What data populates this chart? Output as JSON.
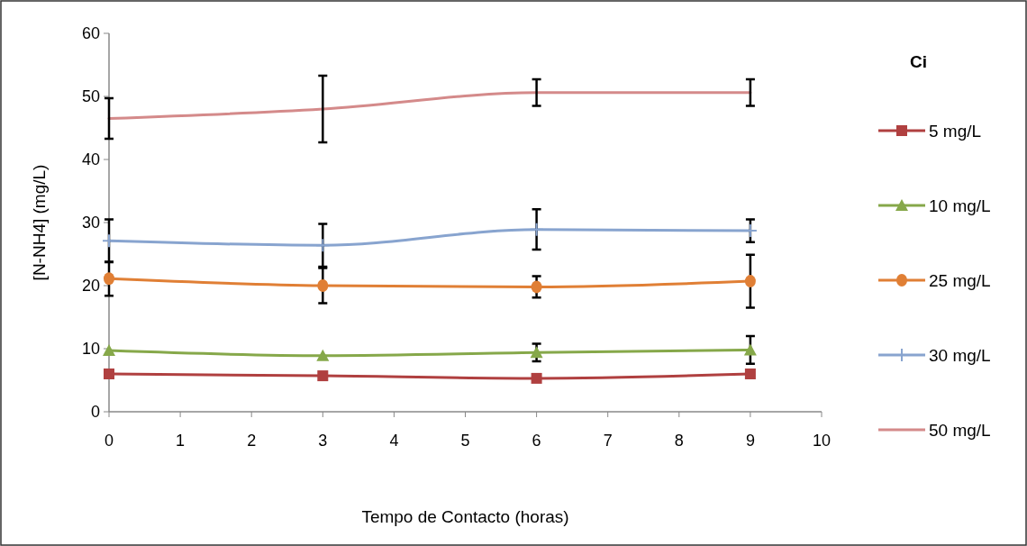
{
  "chart_data": {
    "type": "line",
    "xlabel": "Tempo de Contacto (horas)",
    "ylabel": "[N-NH4] (mg/L)",
    "legend_title": "Ci",
    "legend": "right",
    "grid": false,
    "x": [
      0,
      3,
      6,
      9
    ],
    "xlim": [
      0,
      10
    ],
    "xticks": [
      0,
      1,
      2,
      3,
      4,
      5,
      6,
      7,
      8,
      9,
      10
    ],
    "ylim": [
      0,
      60
    ],
    "yticks": [
      0,
      10,
      20,
      30,
      40,
      50,
      60
    ],
    "series": [
      {
        "name": "5 mg/L",
        "color": "#b04040",
        "marker": "square",
        "values": [
          6.0,
          5.7,
          5.3,
          6.0
        ]
      },
      {
        "name": "10 mg/L",
        "color": "#86a84a",
        "marker": "triangle",
        "values": [
          9.7,
          8.9,
          9.4,
          9.8
        ],
        "errors": [
          null,
          null,
          1.4,
          2.2
        ]
      },
      {
        "name": "25 mg/L",
        "color": "#e07f35",
        "marker": "circle",
        "values": [
          21.1,
          20.0,
          19.8,
          20.7
        ],
        "errors": [
          2.7,
          2.8,
          1.7,
          4.2
        ]
      },
      {
        "name": "30 mg/L",
        "color": "#88a4cf",
        "marker": "cross",
        "values": [
          27.1,
          26.4,
          28.9,
          28.7
        ],
        "errors": [
          3.4,
          3.4,
          3.2,
          1.8
        ]
      },
      {
        "name": "50 mg/L",
        "color": "#d48a8a",
        "marker": "none",
        "values": [
          46.5,
          48.0,
          50.6,
          50.6
        ],
        "errors": [
          3.2,
          5.3,
          2.1,
          2.1
        ]
      }
    ]
  }
}
